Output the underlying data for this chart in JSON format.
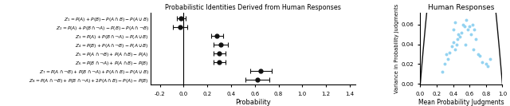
{
  "title_left": "Probabilistic Identities Derived from Human Responses",
  "title_right": "Human Responses",
  "ylabel_right": "Variance in Probability Judgments",
  "xlabel_right": "Mean Probability Judgments",
  "xlabel_left": "Probability",
  "ytick_labels": [
    "$Z_1 = P(A) + P(B) - P(A \\cap B) - P(A \\cup B)$",
    "$Z_2 = P(A) + P(B \\cap \\neg A) - P(B) - P(A \\cap \\neg B)$",
    "$Z_3 = P(A) + P(B \\cap \\neg A) - P(A \\cup B)$",
    "$Z_4 = P(B) + P(A \\cap \\neg B) - P(A \\cup B)$",
    "$Z_5 = P(A \\cap \\neg B) + P(A \\cap B) - P(A)$",
    "$Z_6 = P(B \\cap \\neg A) + P(A \\cap B) - P(B)$",
    "$Z_7 = P(A \\cap \\neg B) + P(B \\cap \\neg A) + P(A \\cap B) - P(A \\cup B)$",
    "$Z_8 = P(A \\cap \\neg B) + P(B \\cap \\neg A) + 2P(A \\cap B) - P(A) - P(B)$"
  ],
  "means": [
    -0.02,
    -0.03,
    0.28,
    0.31,
    0.3,
    0.3,
    0.65,
    0.62
  ],
  "errors": [
    0.04,
    0.06,
    0.05,
    0.06,
    0.05,
    0.05,
    0.09,
    0.1
  ],
  "dot_color": "#111111",
  "xlim_left": [
    -0.28,
    1.45
  ],
  "xticks_left": [
    -0.2,
    0.0,
    0.2,
    0.4,
    0.6,
    0.8,
    1.0,
    1.2,
    1.4
  ],
  "scatter_means": [
    0.27,
    0.3,
    0.32,
    0.34,
    0.36,
    0.38,
    0.4,
    0.4,
    0.42,
    0.42,
    0.44,
    0.45,
    0.46,
    0.48,
    0.5,
    0.52,
    0.54,
    0.55,
    0.56,
    0.58,
    0.6,
    0.62,
    0.64,
    0.65,
    0.66,
    0.68,
    0.7,
    0.72,
    0.75,
    0.8,
    0.82,
    0.85
  ],
  "scatter_vars": [
    0.012,
    0.02,
    0.03,
    0.025,
    0.032,
    0.038,
    0.042,
    0.055,
    0.035,
    0.062,
    0.04,
    0.045,
    0.05,
    0.048,
    0.052,
    0.06,
    0.058,
    0.04,
    0.065,
    0.055,
    0.058,
    0.05,
    0.06,
    0.035,
    0.055,
    0.045,
    0.03,
    0.028,
    0.022,
    0.02,
    0.018,
    0.025
  ],
  "scatter_color": "#89CFF0",
  "curve_color": "#111111",
  "xlim_right": [
    0.0,
    1.0
  ],
  "ylim_right": [
    -0.001,
    0.072
  ],
  "yticks_right": [
    0.0,
    0.02,
    0.04,
    0.06
  ],
  "xticks_right": [
    0.0,
    0.2,
    0.4,
    0.6,
    0.8,
    1.0
  ]
}
